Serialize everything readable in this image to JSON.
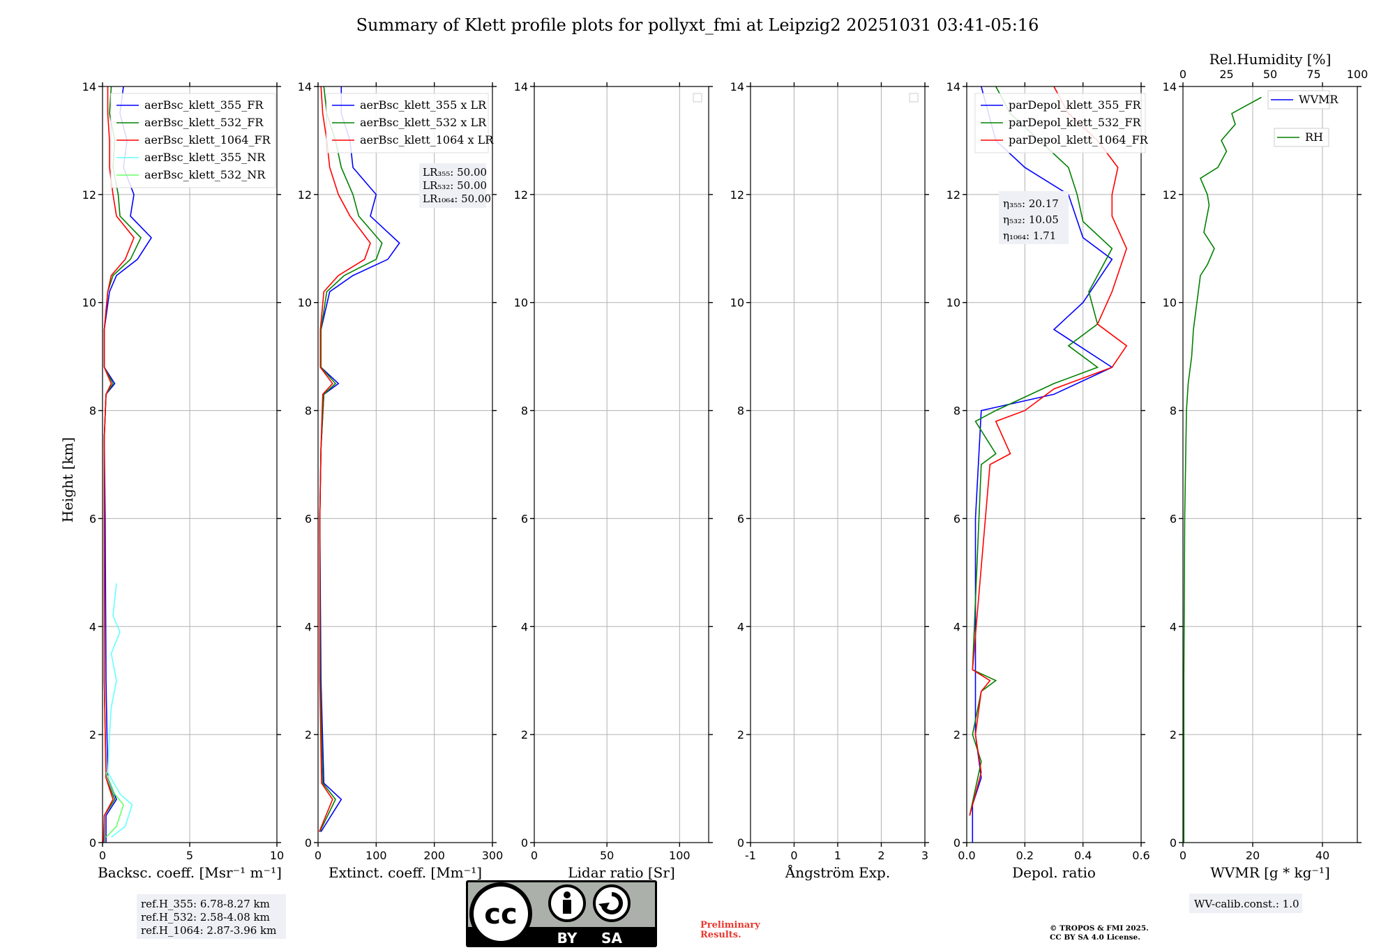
{
  "title": "Summary of Klett profile plots for pollyxt_fmi at Leipzig2 20251031 03:41-05:16",
  "ylabel": "Height [km]",
  "colors": {
    "blue": "#0000ff",
    "green": "#008000",
    "red": "#ff0000",
    "cyan": "#66ffff",
    "lightgreen": "#66ff66",
    "grid": "#b0b0b0",
    "boxbg": "#eef0f5"
  },
  "chart_data": [
    {
      "type": "line",
      "name": "backscatter",
      "xlabel": "Backsc. coeff. [Msr⁻¹ m⁻¹]",
      "xlim": [
        0,
        10
      ],
      "ylim": [
        0,
        14
      ],
      "xticks": [
        0,
        5,
        10
      ],
      "yticks": [
        0,
        2,
        4,
        6,
        8,
        10,
        12,
        14
      ],
      "series": [
        {
          "name": "aerBsc_klett_355_FR",
          "color": "#0000ff",
          "points": [
            [
              0.2,
              0
            ],
            [
              0.2,
              0.5
            ],
            [
              0.8,
              0.8
            ],
            [
              0.3,
              1.2
            ],
            [
              0.2,
              3
            ],
            [
              0.15,
              6
            ],
            [
              0.1,
              7.5
            ],
            [
              0.2,
              8.3
            ],
            [
              0.7,
              8.5
            ],
            [
              0.1,
              8.8
            ],
            [
              0.1,
              9.5
            ],
            [
              0.4,
              10.2
            ],
            [
              0.8,
              10.5
            ],
            [
              2,
              10.8
            ],
            [
              2.8,
              11.2
            ],
            [
              1.6,
              11.6
            ],
            [
              1.8,
              12
            ],
            [
              1.2,
              12.5
            ],
            [
              1.4,
              13
            ],
            [
              1,
              13.5
            ],
            [
              1.2,
              14
            ]
          ]
        },
        {
          "name": "aerBsc_klett_532_FR",
          "color": "#008000",
          "points": [
            [
              0.1,
              0
            ],
            [
              0.1,
              0.5
            ],
            [
              0.7,
              0.8
            ],
            [
              0.2,
              1.2
            ],
            [
              0.1,
              3
            ],
            [
              0.1,
              6
            ],
            [
              0.1,
              7.5
            ],
            [
              0.2,
              8.3
            ],
            [
              0.6,
              8.5
            ],
            [
              0.1,
              8.8
            ],
            [
              0.1,
              9.5
            ],
            [
              0.3,
              10.2
            ],
            [
              0.6,
              10.5
            ],
            [
              1.6,
              10.8
            ],
            [
              2.2,
              11.2
            ],
            [
              1,
              11.6
            ],
            [
              0.9,
              12
            ],
            [
              0.6,
              12.5
            ],
            [
              0.7,
              13
            ],
            [
              0.4,
              13.5
            ],
            [
              0.5,
              14
            ]
          ]
        },
        {
          "name": "aerBsc_klett_1064_FR",
          "color": "#ff0000",
          "points": [
            [
              0.05,
              0
            ],
            [
              0.1,
              0.5
            ],
            [
              0.6,
              0.8
            ],
            [
              0.2,
              1.2
            ],
            [
              0.1,
              3
            ],
            [
              0.1,
              6
            ],
            [
              0.1,
              7.5
            ],
            [
              0.2,
              8.3
            ],
            [
              0.5,
              8.5
            ],
            [
              0.1,
              8.8
            ],
            [
              0.1,
              9.5
            ],
            [
              0.3,
              10.2
            ],
            [
              0.5,
              10.5
            ],
            [
              1.3,
              10.8
            ],
            [
              1.8,
              11.2
            ],
            [
              0.8,
              11.6
            ],
            [
              0.6,
              12
            ],
            [
              0.4,
              12.5
            ],
            [
              0.4,
              13
            ],
            [
              0.3,
              13.5
            ],
            [
              0.3,
              14
            ]
          ]
        },
        {
          "name": "aerBsc_klett_355_NR",
          "color": "#66ffff",
          "points": [
            [
              0.5,
              0.1
            ],
            [
              1.3,
              0.3
            ],
            [
              1.7,
              0.7
            ],
            [
              1,
              0.9
            ],
            [
              0.3,
              1.3
            ],
            [
              0.4,
              2
            ],
            [
              0.5,
              2.5
            ],
            [
              0.8,
              3
            ],
            [
              0.5,
              3.5
            ],
            [
              1,
              3.9
            ],
            [
              0.6,
              4.2
            ],
            [
              0.8,
              4.8
            ]
          ]
        },
        {
          "name": "aerBsc_klett_532_NR",
          "color": "#66ff66",
          "points": [
            [
              0.2,
              0.1
            ],
            [
              0.8,
              0.3
            ],
            [
              1.2,
              0.7
            ],
            [
              0.7,
              0.9
            ],
            [
              0.2,
              1.3
            ]
          ]
        }
      ]
    },
    {
      "type": "line",
      "name": "extinction",
      "xlabel": "Extinct. coeff. [Mm⁻¹]",
      "xlim": [
        0,
        300
      ],
      "ylim": [
        0,
        14
      ],
      "xticks": [
        0,
        100,
        200,
        300
      ],
      "yticks": [
        0,
        2,
        4,
        6,
        8,
        10,
        12,
        14
      ],
      "series": [
        {
          "name": "aerBsc_klett_355 x LR",
          "color": "#0000ff",
          "points": [
            [
              5,
              0.2
            ],
            [
              40,
              0.8
            ],
            [
              10,
              1.1
            ],
            [
              5,
              3
            ],
            [
              3,
              6
            ],
            [
              5,
              7.3
            ],
            [
              10,
              8.3
            ],
            [
              35,
              8.5
            ],
            [
              5,
              8.8
            ],
            [
              5,
              9.5
            ],
            [
              20,
              10.2
            ],
            [
              60,
              10.5
            ],
            [
              120,
              10.8
            ],
            [
              140,
              11.1
            ],
            [
              90,
              11.6
            ],
            [
              100,
              12
            ],
            [
              60,
              12.5
            ],
            [
              55,
              13
            ],
            [
              40,
              13.5
            ],
            [
              40,
              14
            ]
          ]
        },
        {
          "name": "aerBsc_klett_532 x LR",
          "color": "#008000",
          "points": [
            [
              3,
              0.2
            ],
            [
              30,
              0.8
            ],
            [
              8,
              1.1
            ],
            [
              4,
              3
            ],
            [
              3,
              6
            ],
            [
              5,
              7.3
            ],
            [
              10,
              8.3
            ],
            [
              30,
              8.5
            ],
            [
              5,
              8.8
            ],
            [
              5,
              9.5
            ],
            [
              15,
              10.2
            ],
            [
              45,
              10.5
            ],
            [
              100,
              10.8
            ],
            [
              110,
              11.1
            ],
            [
              70,
              11.6
            ],
            [
              60,
              12
            ],
            [
              40,
              12.5
            ],
            [
              30,
              13
            ],
            [
              15,
              13.5
            ],
            [
              10,
              14
            ]
          ]
        },
        {
          "name": "aerBsc_klett_1064 x LR",
          "color": "#ff0000",
          "points": [
            [
              2,
              0.2
            ],
            [
              25,
              0.8
            ],
            [
              6,
              1.1
            ],
            [
              3,
              3
            ],
            [
              3,
              6
            ],
            [
              5,
              7.3
            ],
            [
              8,
              8.3
            ],
            [
              25,
              8.5
            ],
            [
              4,
              8.8
            ],
            [
              4,
              9.5
            ],
            [
              10,
              10.2
            ],
            [
              35,
              10.5
            ],
            [
              80,
              10.8
            ],
            [
              90,
              11.1
            ],
            [
              55,
              11.6
            ],
            [
              35,
              12
            ],
            [
              20,
              12.5
            ],
            [
              15,
              13
            ],
            [
              8,
              13.5
            ],
            [
              5,
              14
            ]
          ]
        }
      ],
      "annotation": [
        "LR₃₅₅: 50.00",
        "LR₅₃₂: 50.00",
        "LR₁₀₆₄: 50.00"
      ]
    },
    {
      "type": "line",
      "name": "lidar_ratio",
      "xlabel": "Lidar ratio [Sr]",
      "xlim": [
        0,
        120
      ],
      "ylim": [
        0,
        14
      ],
      "xticks": [
        0,
        50,
        100
      ],
      "yticks": [
        0,
        2,
        4,
        6,
        8,
        10,
        12,
        14
      ],
      "series": []
    },
    {
      "type": "line",
      "name": "angstrom",
      "xlabel": "Ångström Exp.",
      "xlim": [
        -1,
        3
      ],
      "ylim": [
        0,
        14
      ],
      "xticks": [
        -1,
        0,
        1,
        2,
        3
      ],
      "yticks": [
        0,
        2,
        4,
        6,
        8,
        10,
        12,
        14
      ],
      "series": []
    },
    {
      "type": "line",
      "name": "depol",
      "xlabel": "Depol. ratio",
      "xlim": [
        0,
        0.6
      ],
      "ylim": [
        0,
        14
      ],
      "xticks": [
        0.0,
        0.2,
        0.4,
        0.6
      ],
      "yticks": [
        0,
        2,
        4,
        6,
        8,
        10,
        12,
        14
      ],
      "series": [
        {
          "name": "parDepol_klett_355_FR",
          "color": "#0000ff",
          "points": [
            [
              0.02,
              0
            ],
            [
              0.02,
              0.7
            ],
            [
              0.05,
              1.2
            ],
            [
              0.03,
              2
            ],
            [
              0.03,
              4
            ],
            [
              0.03,
              6
            ],
            [
              0.05,
              8
            ],
            [
              0.3,
              8.3
            ],
            [
              0.5,
              8.8
            ],
            [
              0.3,
              9.5
            ],
            [
              0.4,
              10
            ],
            [
              0.5,
              10.8
            ],
            [
              0.4,
              11.2
            ],
            [
              0.35,
              12
            ],
            [
              0.2,
              12.5
            ],
            [
              0.1,
              13
            ],
            [
              0.05,
              14
            ]
          ]
        },
        {
          "name": "parDepol_klett_532_FR",
          "color": "#008000",
          "points": [
            [
              0.01,
              0.5
            ],
            [
              0.05,
              1.5
            ],
            [
              0.02,
              2
            ],
            [
              0.05,
              2.8
            ],
            [
              0.1,
              3
            ],
            [
              0.02,
              3.2
            ],
            [
              0.05,
              7
            ],
            [
              0.1,
              7.2
            ],
            [
              0.03,
              7.8
            ],
            [
              0.1,
              8
            ],
            [
              0.3,
              8.5
            ],
            [
              0.45,
              8.8
            ],
            [
              0.35,
              9.2
            ],
            [
              0.45,
              9.6
            ],
            [
              0.42,
              10.2
            ],
            [
              0.5,
              11
            ],
            [
              0.4,
              11.5
            ],
            [
              0.38,
              12
            ],
            [
              0.35,
              12.5
            ],
            [
              0.25,
              13
            ],
            [
              0.15,
              13.5
            ],
            [
              0.1,
              14
            ]
          ]
        },
        {
          "name": "parDepol_klett_1064_FR",
          "color": "#ff0000",
          "points": [
            [
              0.01,
              0.5
            ],
            [
              0.05,
              1.3
            ],
            [
              0.03,
              2
            ],
            [
              0.05,
              2.8
            ],
            [
              0.08,
              3
            ],
            [
              0.02,
              3.2
            ],
            [
              0.08,
              7
            ],
            [
              0.15,
              7.2
            ],
            [
              0.1,
              7.8
            ],
            [
              0.2,
              8
            ],
            [
              0.3,
              8.4
            ],
            [
              0.5,
              8.8
            ],
            [
              0.55,
              9.2
            ],
            [
              0.45,
              9.6
            ],
            [
              0.5,
              10.2
            ],
            [
              0.55,
              11
            ],
            [
              0.5,
              11.6
            ],
            [
              0.5,
              12
            ],
            [
              0.52,
              12.5
            ],
            [
              0.45,
              13
            ],
            [
              0.35,
              13.5
            ],
            [
              0.3,
              14
            ]
          ]
        }
      ],
      "annotation": [
        "η₃₅₅: 20.17",
        "η₅₃₂: 10.05",
        "η₁₀₆₄: 1.71"
      ]
    },
    {
      "type": "line",
      "name": "wvmr",
      "xlabel": "WVMR [g * kg⁻¹]",
      "top_xlabel": "Rel.Humidity [%]",
      "xlim": [
        0,
        50
      ],
      "ylim": [
        0,
        14
      ],
      "xticks": [
        0,
        20,
        40
      ],
      "top_xticks": [
        0,
        25,
        50,
        75,
        100
      ],
      "yticks": [
        0,
        2,
        4,
        6,
        8,
        10,
        12,
        14
      ],
      "series": [
        {
          "name": "WVMR",
          "color": "#0000ff",
          "points": []
        },
        {
          "name": "RH",
          "color": "#008000",
          "axis": "top",
          "points": [
            [
              0.5,
              0
            ],
            [
              0.5,
              3
            ],
            [
              1,
              6
            ],
            [
              2,
              8
            ],
            [
              3,
              8.5
            ],
            [
              5,
              9
            ],
            [
              6,
              9.5
            ],
            [
              8,
              10
            ],
            [
              10,
              10.5
            ],
            [
              14,
              10.7
            ],
            [
              18,
              11
            ],
            [
              12,
              11.3
            ],
            [
              15,
              11.8
            ],
            [
              14,
              12
            ],
            [
              10,
              12.3
            ],
            [
              20,
              12.5
            ],
            [
              25,
              12.8
            ],
            [
              22,
              13
            ],
            [
              30,
              13.3
            ],
            [
              28,
              13.5
            ],
            [
              45,
              13.8
            ]
          ]
        }
      ],
      "annotation": [
        "WV-calib.const.: 1.0"
      ]
    }
  ],
  "ref_heights": [
    "ref.H_355: 6.78-8.27 km",
    "ref.H_532: 2.58-4.08 km",
    "ref.H_1064: 2.87-3.96 km"
  ],
  "license": {
    "cc": "cc",
    "by": "BY",
    "sa": "SA"
  },
  "preliminary": [
    "Preliminary",
    "Results."
  ],
  "copyright": [
    "© TROPOS & FMI 2025.",
    "CC BY SA 4.0 License."
  ]
}
